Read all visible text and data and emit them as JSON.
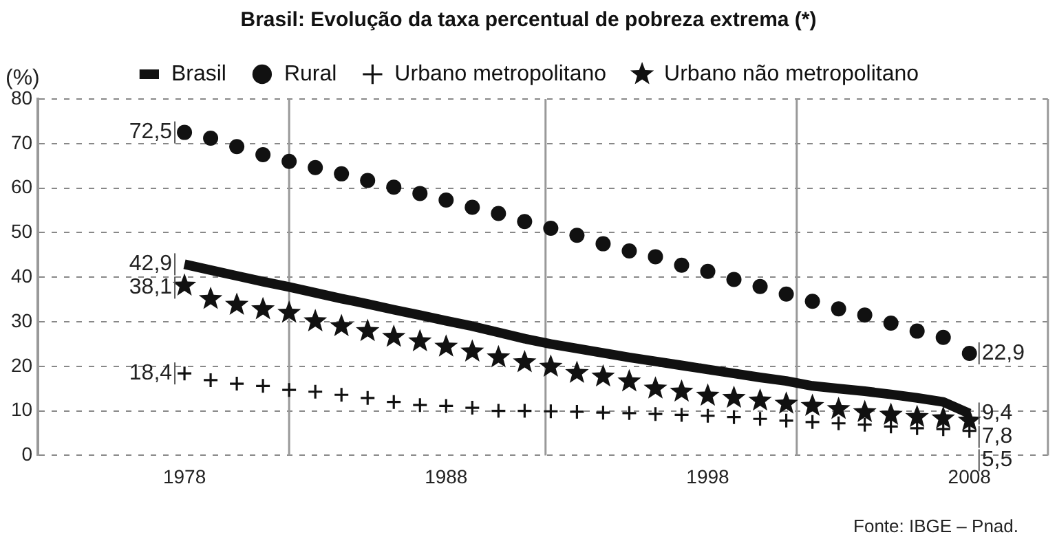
{
  "chart_data": {
    "type": "line",
    "title": "Brasil: Evolução da taxa percentual de pobreza extrema (*)",
    "ylabel": "(%)",
    "x": [
      1978,
      1979,
      1980,
      1981,
      1982,
      1983,
      1984,
      1985,
      1986,
      1987,
      1988,
      1989,
      1990,
      1991,
      1992,
      1993,
      1994,
      1995,
      1996,
      1997,
      1998,
      1999,
      2000,
      2001,
      2002,
      2003,
      2004,
      2005,
      2006,
      2007,
      2008
    ],
    "series": [
      {
        "name": "Brasil",
        "marker": "none",
        "color": "#111111",
        "values": [
          42.9,
          41.6,
          40.3,
          39.0,
          37.8,
          36.5,
          35.2,
          34.0,
          32.7,
          31.5,
          30.2,
          29.0,
          27.6,
          26.2,
          25.0,
          24.0,
          23.0,
          22.0,
          21.1,
          20.2,
          19.3,
          18.4,
          17.5,
          16.7,
          15.6,
          15.0,
          14.4,
          13.7,
          12.9,
          12.0,
          9.4
        ],
        "value_labels": [
          "42,9",
          null,
          null,
          null,
          null,
          null,
          null,
          null,
          null,
          null,
          null,
          null,
          null,
          null,
          null,
          null,
          null,
          null,
          null,
          null,
          null,
          null,
          null,
          null,
          null,
          null,
          null,
          null,
          null,
          null,
          "9,4"
        ]
      },
      {
        "name": "Rural",
        "type": "scatter",
        "marker": "circle",
        "color": "#111111",
        "values": [
          72.5,
          71.2,
          69.3,
          67.5,
          66.0,
          64.6,
          63.2,
          61.7,
          60.2,
          58.8,
          57.3,
          55.7,
          54.3,
          52.5,
          51.0,
          49.4,
          47.5,
          45.9,
          44.6,
          42.7,
          41.3,
          39.5,
          37.9,
          36.2,
          34.6,
          32.9,
          31.5,
          29.7,
          27.9,
          26.5,
          22.9
        ],
        "value_labels": [
          "72,5",
          null,
          null,
          null,
          null,
          null,
          null,
          null,
          null,
          null,
          null,
          null,
          null,
          null,
          null,
          null,
          null,
          null,
          null,
          null,
          null,
          null,
          null,
          null,
          null,
          null,
          null,
          null,
          null,
          null,
          "22,9"
        ]
      },
      {
        "name": "Urbano metropolitano",
        "type": "scatter",
        "marker": "cross",
        "color": "#111111",
        "values": [
          18.4,
          16.9,
          16.1,
          15.6,
          14.7,
          14.3,
          13.6,
          12.9,
          12.0,
          11.3,
          11.1,
          10.7,
          10.0,
          10.0,
          9.9,
          9.8,
          9.6,
          9.5,
          9.3,
          9.1,
          8.9,
          8.6,
          8.2,
          7.8,
          7.5,
          7.2,
          6.9,
          6.5,
          6.1,
          5.9,
          5.5
        ],
        "value_labels": [
          "18,4",
          null,
          null,
          null,
          null,
          null,
          null,
          null,
          null,
          null,
          null,
          null,
          null,
          null,
          null,
          null,
          null,
          null,
          null,
          null,
          null,
          null,
          null,
          null,
          null,
          null,
          null,
          null,
          null,
          null,
          "5,5"
        ]
      },
      {
        "name": "Urbano não metropolitano",
        "type": "scatter",
        "marker": "star",
        "color": "#111111",
        "values": [
          38.1,
          35.1,
          33.8,
          32.8,
          32.0,
          30.1,
          29.0,
          27.9,
          26.6,
          25.6,
          24.4,
          23.3,
          22.0,
          20.9,
          19.9,
          18.5,
          17.7,
          16.6,
          15.0,
          14.3,
          13.4,
          12.9,
          12.3,
          11.6,
          11.1,
          10.4,
          9.7,
          9.1,
          8.6,
          8.3,
          7.8
        ],
        "value_labels": [
          "38,1",
          null,
          null,
          null,
          null,
          null,
          null,
          null,
          null,
          null,
          null,
          null,
          null,
          null,
          null,
          null,
          null,
          null,
          null,
          null,
          null,
          null,
          null,
          null,
          null,
          null,
          null,
          null,
          null,
          null,
          "7,8"
        ]
      }
    ],
    "xlim": [
      1972.4,
      2011
    ],
    "xticks": [
      1978,
      1988,
      1998,
      2008
    ],
    "ylim": [
      0,
      80
    ],
    "yticks": [
      0,
      10,
      20,
      30,
      40,
      50,
      60,
      70,
      80
    ],
    "grid": "y",
    "legend": "top",
    "ref_lines": [
      {
        "axis": "x",
        "value": 1982,
        "color": "#999999"
      },
      {
        "axis": "x",
        "value": 1991.8,
        "color": "#999999"
      },
      {
        "axis": "x",
        "value": 2001.4,
        "color": "#999999"
      }
    ],
    "annotations": [
      "Fonte: IBGE – Pnad."
    ]
  }
}
